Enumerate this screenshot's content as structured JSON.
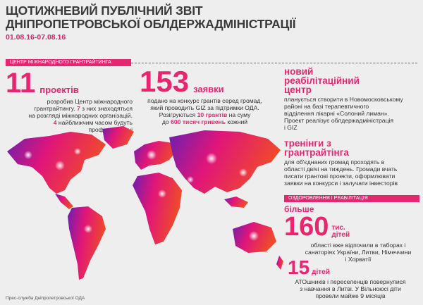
{
  "header": {
    "title_line1": "ЩОТИЖНЕВИЙ ПУБЛІЧНИЙ ЗВІТ",
    "title_line2": "ДНІПРОПЕТРОВСЬКОЇ ОБЛДЕРЖАДМІНІСТРАЦІЇ",
    "date": "01.08.16-07.08.16"
  },
  "grants_section": {
    "bar_label": "ЦЕНТР МІЖНАРОДНОГО ГРАНТРАЙТИНГА",
    "projects": {
      "number": "11",
      "unit": "проектів",
      "line1": "розробив Центр міжнародного",
      "line2_a": "грантрайтингу. ",
      "line2_b": "7",
      "line2_c": " з них знаходяться",
      "line3": "на розгляді міжнародних організацій.",
      "line4_a": "4",
      "line4_b": " найближчим часом будуть",
      "line5": "профінансовані"
    },
    "applications": {
      "number": "153",
      "unit": "заявки",
      "line1": "подано на конкурс грантів серед громад,",
      "line2": "який проводить GIZ за підтримки ОДА.",
      "line3_a": "Розігруються ",
      "line3_b": "10 грантів",
      "line3_c": " на суму",
      "line4_a": "до ",
      "line4_b": "600 тисяч гривень",
      "line4_c": " кожний"
    },
    "rehab_center": {
      "head1": "новий",
      "head2": "реабілітаційний",
      "head3": "центр",
      "line1": "планується створити в Новомосковському",
      "line2": "районі на базі терапевтичного",
      "line3": "відділення лікарні «Солоний лиман».",
      "line4": "Проект реалізує облдержадміністрація",
      "line5": "і GIZ"
    },
    "trainings": {
      "head1": "тренінги з",
      "head2": "грантрайтінга",
      "line1": "для об'єднаних громад проходять в",
      "line2": "області двічі на тиждень. Громади вчать",
      "line3": "писати грантові проекти, оформлювати",
      "line4": "заявки на конкурси і залучати інвесторів"
    }
  },
  "health_section": {
    "bar_label": "ОЗДОРОВЛЕННЯ І РЕАБІЛІТАЦІЯ",
    "children": {
      "prefix": "більше",
      "number": "160",
      "unit1": "тис.",
      "unit2": "дітей",
      "line1": "області вже відпочили в таборах і",
      "line2": "санаторіях України, Литви, Німеччини",
      "line3": "і Хорватії"
    },
    "ato_children": {
      "number": "15",
      "unit": "дітей",
      "line1": "АТОшників і переселенців повернулися",
      "line2": "з навчання в Литві. У Вільноюсі діти",
      "line3": "провели майже 9 місяців"
    }
  },
  "footer": {
    "credit": "Прес-служба Дніпропетровської ОДА"
  },
  "colors": {
    "accent": "#e8266f",
    "map_left": "#6a1fb0",
    "map_mid": "#e0157a",
    "map_right": "#f04a2a"
  }
}
